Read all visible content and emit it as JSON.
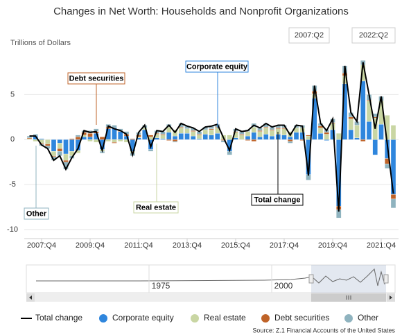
{
  "chart_data": {
    "type": "bar",
    "title": "Changes in Net Worth: Households and Nonprofit Organizations",
    "y_axis_label": "Trillions of Dollars",
    "range_start": "2007:Q2",
    "range_end": "2022:Q2",
    "source": "Source: Z.1 Financial Accounts of the United States",
    "categories": [
      null,
      null,
      "2007:Q4",
      null,
      null,
      null,
      null,
      null,
      null,
      null,
      "2009:Q4",
      null,
      null,
      null,
      null,
      null,
      null,
      null,
      "2011:Q4",
      null,
      null,
      null,
      null,
      null,
      null,
      null,
      "2013:Q4",
      null,
      null,
      null,
      null,
      null,
      null,
      null,
      "2015:Q4",
      null,
      null,
      null,
      null,
      null,
      null,
      null,
      "2017:Q4",
      null,
      null,
      null,
      null,
      null,
      null,
      null,
      "2019:Q4",
      null,
      null,
      null,
      null,
      null,
      null,
      null,
      "2021:Q4",
      null,
      null
    ],
    "series": [
      {
        "name": "Total change",
        "type": "line",
        "color": "#000000",
        "values": [
          0.4,
          0.4,
          -0.6,
          -1.0,
          -2.3,
          -1.8,
          -3.3,
          -2.0,
          -1.0,
          1.0,
          0.8,
          0.9,
          -1.2,
          1.5,
          1.2,
          1.0,
          0.6,
          -1.7,
          0.8,
          1.6,
          -0.8,
          1.0,
          0.9,
          1.6,
          0.8,
          1.8,
          1.5,
          1.3,
          0.9,
          1.4,
          1.5,
          1.7,
          0.2,
          -1.2,
          1.2,
          0.9,
          1.0,
          1.6,
          1.3,
          1.8,
          1.4,
          1.6,
          1.6,
          0.5,
          1.6,
          1.5,
          -4.0,
          6.0,
          1.8,
          1.0,
          2.3,
          -8.0,
          8.2,
          3.0,
          2.0,
          8.6,
          5.0,
          1.2,
          4.8,
          -0.5,
          -6.0
        ]
      },
      {
        "name": "Corporate equity",
        "type": "bar",
        "color": "#2f86dd",
        "values": [
          0.0,
          0.4,
          0.1,
          0.0,
          -1.3,
          -0.4,
          -1.6,
          -1.3,
          -1.2,
          0.3,
          0.3,
          0.7,
          -1.1,
          1.2,
          1.3,
          0.9,
          0.4,
          -1.3,
          0.2,
          1.1,
          -1.1,
          0.2,
          0.1,
          0.8,
          0.4,
          0.7,
          0.7,
          0.4,
          0.1,
          0.6,
          0.5,
          0.7,
          0.0,
          -1.3,
          0.2,
          0.0,
          0.4,
          0.8,
          0.3,
          0.6,
          0.4,
          0.6,
          0.5,
          0.3,
          0.8,
          0.8,
          -3.9,
          4.6,
          0.7,
          -0.1,
          1.1,
          -7.4,
          6.2,
          1.1,
          0.2,
          6.5,
          2.0,
          -1.7,
          1.7,
          -2.1,
          -6.1
        ]
      },
      {
        "name": "Real estate",
        "type": "bar",
        "color": "#c9d6a3",
        "values": [
          0.1,
          -0.2,
          -0.4,
          -0.5,
          -0.5,
          -0.6,
          -0.7,
          -0.5,
          -0.3,
          0.2,
          -0.2,
          -0.3,
          -0.2,
          -0.2,
          -0.3,
          -0.2,
          -0.3,
          -0.2,
          0.1,
          0.2,
          0.3,
          0.4,
          0.4,
          0.6,
          0.7,
          0.6,
          0.5,
          0.5,
          0.4,
          0.5,
          0.6,
          0.6,
          0.5,
          0.5,
          0.6,
          0.5,
          0.5,
          0.6,
          0.6,
          0.7,
          0.6,
          0.6,
          0.7,
          0.6,
          0.5,
          0.5,
          0.4,
          0.5,
          0.6,
          0.6,
          0.7,
          0.7,
          0.9,
          1.2,
          1.4,
          1.8,
          2.3,
          2.4,
          2.6,
          2.7,
          1.6
        ]
      },
      {
        "name": "Debt securities",
        "type": "bar",
        "color": "#bf6328",
        "values": [
          0.1,
          0.0,
          -0.1,
          -0.2,
          -0.1,
          -0.3,
          -0.2,
          0.1,
          0.3,
          0.3,
          0.4,
          0.2,
          0.3,
          0.2,
          -0.1,
          0.1,
          0.2,
          0.1,
          0.2,
          0.0,
          0.2,
          0.1,
          0.1,
          -0.1,
          -0.2,
          0.1,
          0.0,
          0.1,
          0.1,
          0.0,
          0.1,
          0.1,
          -0.1,
          0.0,
          0.1,
          0.1,
          -0.1,
          -0.2,
          0.1,
          0.1,
          0.1,
          0.1,
          0.1,
          -0.2,
          0.0,
          -0.1,
          0.1,
          0.3,
          0.2,
          0.2,
          0.1,
          -0.4,
          0.3,
          0.2,
          0.0,
          -0.2,
          0.1,
          0.1,
          0.0,
          -0.6,
          -0.5
        ]
      },
      {
        "name": "Other",
        "type": "bar",
        "color": "#8fb3bf",
        "values": [
          0.2,
          0.2,
          -0.2,
          -0.3,
          -0.4,
          -0.5,
          -0.8,
          -0.3,
          0.2,
          0.2,
          0.3,
          0.3,
          -0.2,
          0.3,
          0.3,
          0.2,
          0.3,
          -0.3,
          0.3,
          0.3,
          -0.2,
          0.3,
          0.3,
          0.3,
          -0.1,
          0.4,
          0.3,
          0.3,
          0.3,
          0.3,
          0.3,
          0.3,
          -0.2,
          -0.4,
          0.3,
          0.3,
          0.2,
          0.4,
          0.3,
          0.4,
          0.3,
          0.3,
          0.3,
          -0.2,
          0.3,
          0.3,
          -0.6,
          0.6,
          0.3,
          0.3,
          0.4,
          -0.9,
          0.8,
          0.5,
          0.4,
          0.5,
          0.6,
          0.4,
          0.5,
          -0.5,
          -1.0
        ]
      }
    ],
    "annotations": [
      {
        "text": "Debt securities"
      },
      {
        "text": "Corporate equity"
      },
      {
        "text": "Real estate"
      },
      {
        "text": "Total change"
      },
      {
        "text": "Other"
      }
    ],
    "navigator_labels": [
      "1975",
      "2000"
    ],
    "ylim": [
      -11,
      9.5
    ],
    "yticks": [
      -10,
      -5,
      0,
      5
    ],
    "grid": true
  }
}
